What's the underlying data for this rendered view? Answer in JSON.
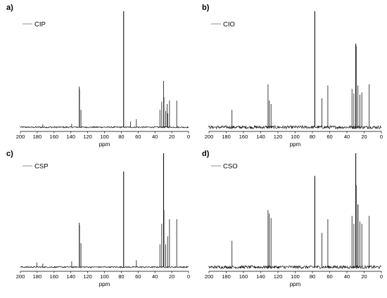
{
  "chart_data": [
    {
      "type": "line",
      "panel_label": "a)",
      "legend": "CIP",
      "xlabel": "ppm",
      "xlim": [
        200,
        0
      ],
      "x_reversed": true,
      "xticks": [
        200,
        180,
        160,
        140,
        120,
        100,
        80,
        60,
        40,
        20,
        0
      ],
      "y_unit": "relative intensity (axis not shown)",
      "noise": 0.006,
      "peaks": [
        {
          "ppm": 173.3,
          "height": 0.025
        },
        {
          "ppm": 139.0,
          "height": 0.03
        },
        {
          "ppm": 130.0,
          "height": 0.35
        },
        {
          "ppm": 129.7,
          "height": 0.33
        },
        {
          "ppm": 128.0,
          "height": 0.15
        },
        {
          "ppm": 77.2,
          "height": 1.0
        },
        {
          "ppm": 68.9,
          "height": 0.05
        },
        {
          "ppm": 62.1,
          "height": 0.07
        },
        {
          "ppm": 34.1,
          "height": 0.15
        },
        {
          "ppm": 31.9,
          "height": 0.22
        },
        {
          "ppm": 29.7,
          "height": 0.4
        },
        {
          "ppm": 29.3,
          "height": 0.26
        },
        {
          "ppm": 27.2,
          "height": 0.14
        },
        {
          "ppm": 25.5,
          "height": 0.2
        },
        {
          "ppm": 24.9,
          "height": 0.12
        },
        {
          "ppm": 22.7,
          "height": 0.23
        },
        {
          "ppm": 14.1,
          "height": 0.23
        }
      ]
    },
    {
      "type": "line",
      "panel_label": "b)",
      "legend": "CIO",
      "xlabel": "ppm",
      "xlim": [
        200,
        0
      ],
      "x_reversed": true,
      "xticks": [
        200,
        180,
        160,
        140,
        120,
        100,
        80,
        60,
        40,
        20,
        0
      ],
      "y_unit": "relative intensity (axis not shown)",
      "noise": 0.013,
      "peaks": [
        {
          "ppm": 173.3,
          "height": 0.15
        },
        {
          "ppm": 131.5,
          "height": 0.37
        },
        {
          "ppm": 130.0,
          "height": 0.23
        },
        {
          "ppm": 128.0,
          "height": 0.2
        },
        {
          "ppm": 77.2,
          "height": 1.0
        },
        {
          "ppm": 68.9,
          "height": 0.25
        },
        {
          "ppm": 62.1,
          "height": 0.36
        },
        {
          "ppm": 34.1,
          "height": 0.33
        },
        {
          "ppm": 31.9,
          "height": 0.29
        },
        {
          "ppm": 29.7,
          "height": 0.72
        },
        {
          "ppm": 29.3,
          "height": 0.7
        },
        {
          "ppm": 27.2,
          "height": 0.36
        },
        {
          "ppm": 25.0,
          "height": 0.28
        },
        {
          "ppm": 22.7,
          "height": 0.3
        },
        {
          "ppm": 14.1,
          "height": 0.37
        }
      ]
    },
    {
      "type": "line",
      "panel_label": "c)",
      "legend": "CSP",
      "xlabel": "ppm",
      "xlim": [
        200,
        0
      ],
      "x_reversed": true,
      "xticks": [
        200,
        180,
        160,
        140,
        120,
        100,
        80,
        60,
        40,
        20,
        0
      ],
      "y_unit": "relative intensity (axis not shown)",
      "noise": 0.006,
      "peaks": [
        {
          "ppm": 180.5,
          "height": 0.04
        },
        {
          "ppm": 173.3,
          "height": 0.03
        },
        {
          "ppm": 139.0,
          "height": 0.05
        },
        {
          "ppm": 130.0,
          "height": 0.39
        },
        {
          "ppm": 129.7,
          "height": 0.37
        },
        {
          "ppm": 128.0,
          "height": 0.21
        },
        {
          "ppm": 77.2,
          "height": 0.84
        },
        {
          "ppm": 62.1,
          "height": 0.06
        },
        {
          "ppm": 34.1,
          "height": 0.2
        },
        {
          "ppm": 31.9,
          "height": 0.38
        },
        {
          "ppm": 29.7,
          "height": 1.0
        },
        {
          "ppm": 29.3,
          "height": 0.5
        },
        {
          "ppm": 27.2,
          "height": 0.2
        },
        {
          "ppm": 24.9,
          "height": 0.27
        },
        {
          "ppm": 22.7,
          "height": 0.42
        },
        {
          "ppm": 14.1,
          "height": 0.42
        }
      ]
    },
    {
      "type": "line",
      "panel_label": "d)",
      "legend": "CSO",
      "xlabel": "ppm",
      "xlim": [
        200,
        0
      ],
      "x_reversed": true,
      "xticks": [
        200,
        180,
        160,
        140,
        120,
        100,
        80,
        60,
        40,
        20,
        0
      ],
      "y_unit": "relative intensity (axis not shown)",
      "noise": 0.013,
      "peaks": [
        {
          "ppm": 173.3,
          "height": 0.23
        },
        {
          "ppm": 131.5,
          "height": 0.5
        },
        {
          "ppm": 130.0,
          "height": 0.47
        },
        {
          "ppm": 128.0,
          "height": 0.43
        },
        {
          "ppm": 77.2,
          "height": 0.8
        },
        {
          "ppm": 68.9,
          "height": 0.3
        },
        {
          "ppm": 62.1,
          "height": 0.42
        },
        {
          "ppm": 34.1,
          "height": 0.45
        },
        {
          "ppm": 31.9,
          "height": 0.38
        },
        {
          "ppm": 29.7,
          "height": 1.0
        },
        {
          "ppm": 29.3,
          "height": 0.72
        },
        {
          "ppm": 27.2,
          "height": 0.55
        },
        {
          "ppm": 25.0,
          "height": 0.4
        },
        {
          "ppm": 22.7,
          "height": 0.38
        },
        {
          "ppm": 14.1,
          "height": 0.45
        }
      ]
    }
  ]
}
